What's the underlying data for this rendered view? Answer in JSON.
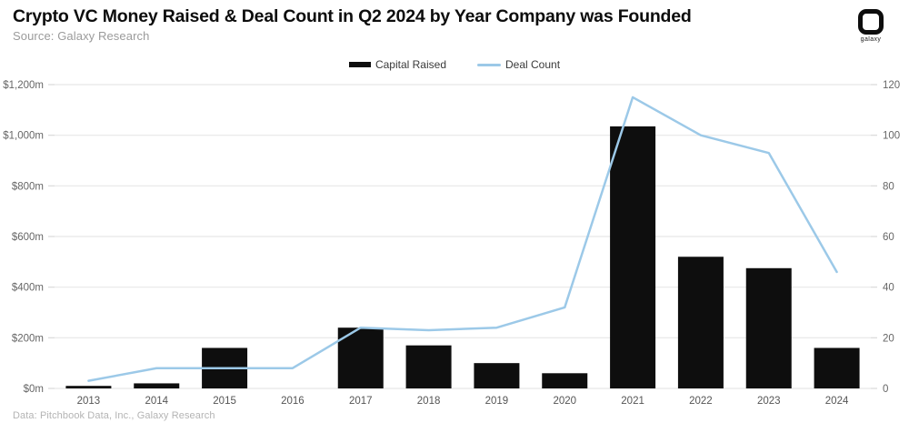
{
  "header": {
    "title": "Crypto VC Money Raised & Deal Count in Q2 2024 by Year Company was Founded",
    "source": "Source: Galaxy Research",
    "logo_text": "galaxy"
  },
  "legend": [
    {
      "label": "Capital Raised",
      "type": "bar",
      "color": "#0e0e0e"
    },
    {
      "label": "Deal Count",
      "type": "line",
      "color": "#9cc9e8"
    }
  ],
  "footer": {
    "credit": "Data: Pitchbook Data, Inc., Galaxy Research"
  },
  "colors": {
    "bar": "#0e0e0e",
    "line": "#9cc9e8",
    "grid": "#e7e7e7",
    "tick": "#d9d9d9",
    "axis_text": "#666666",
    "x_text": "#555555"
  },
  "chart_data": {
    "type": "bar+line",
    "title": "Crypto VC Money Raised & Deal Count in Q2 2024 by Year Company was Founded",
    "categories": [
      "2013",
      "2014",
      "2015",
      "2016",
      "2017",
      "2018",
      "2019",
      "2020",
      "2021",
      "2022",
      "2023",
      "2024"
    ],
    "series": [
      {
        "name": "Capital Raised",
        "type": "bar",
        "axis": "left",
        "color": "#0e0e0e",
        "values": [
          10,
          20,
          160,
          0,
          240,
          170,
          100,
          60,
          1035,
          520,
          475,
          160
        ]
      },
      {
        "name": "Deal Count",
        "type": "line",
        "axis": "right",
        "color": "#9cc9e8",
        "values": [
          3,
          8,
          8,
          8,
          24,
          23,
          24,
          32,
          115,
          100,
          93,
          46
        ]
      }
    ],
    "left_axis": {
      "unit": "$m",
      "tick_labels": [
        "$1,200m",
        "$1,000m",
        "$800m",
        "$600m",
        "$400m",
        "$200m",
        "$0m"
      ],
      "tick_values": [
        1200,
        1000,
        800,
        600,
        400,
        200,
        0
      ],
      "min": 0,
      "max": 1200
    },
    "right_axis": {
      "unit": "deals",
      "tick_labels": [
        "120",
        "100",
        "80",
        "60",
        "40",
        "20",
        "0"
      ],
      "tick_values": [
        120,
        100,
        80,
        60,
        40,
        20,
        0
      ],
      "min": 0,
      "max": 120
    },
    "grid": true,
    "legend_position": "top-center"
  }
}
